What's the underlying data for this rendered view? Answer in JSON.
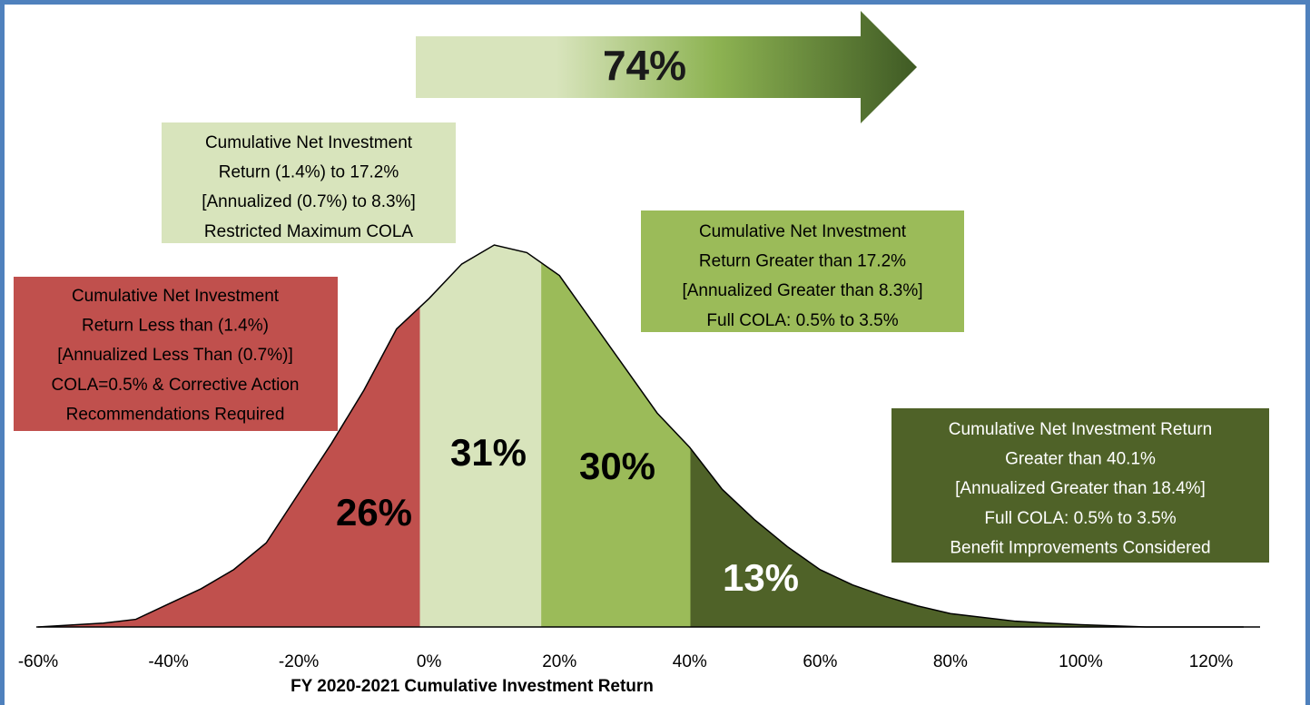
{
  "chart_data": {
    "type": "area",
    "x_label": "FY 2020-2021 Cumulative Investment Return",
    "xlim": [
      -60,
      120
    ],
    "xticks": [
      {
        "value": -60,
        "label": "-60%"
      },
      {
        "value": -40,
        "label": "-40%"
      },
      {
        "value": -20,
        "label": "-20%"
      },
      {
        "value": 0,
        "label": "0%"
      },
      {
        "value": 20,
        "label": "20%"
      },
      {
        "value": 40,
        "label": "40%"
      },
      {
        "value": 60,
        "label": "60%"
      },
      {
        "value": 80,
        "label": "80%"
      },
      {
        "value": 100,
        "label": "100%"
      },
      {
        "value": 120,
        "label": "120%"
      }
    ],
    "curve": {
      "x": [
        -60,
        -55,
        -50,
        -45,
        -40,
        -35,
        -30,
        -25,
        -20,
        -15,
        -10,
        -5,
        0,
        5,
        10,
        15,
        20,
        25,
        30,
        35,
        40,
        45,
        50,
        55,
        60,
        65,
        70,
        75,
        80,
        85,
        90,
        95,
        100,
        105,
        110,
        125
      ],
      "values": [
        0,
        0.5,
        1,
        2,
        6,
        10,
        15,
        22,
        35,
        48,
        62,
        78,
        86,
        95,
        100,
        98,
        92,
        80,
        68,
        56,
        47,
        36,
        28,
        21,
        15,
        11,
        8,
        5.5,
        3.5,
        2.5,
        1.5,
        1,
        0.6,
        0.3,
        0,
        0
      ],
      "color": "#000000"
    },
    "boundaries": [
      -1.4,
      17.2,
      40.1
    ],
    "regions": [
      {
        "value": 26,
        "value_label": "26%",
        "color": "#c0504d",
        "label_color": "#000000"
      },
      {
        "value": 31,
        "value_label": "31%",
        "color": "#d8e4bc",
        "label_color": "#000000"
      },
      {
        "value": 30,
        "value_label": "30%",
        "color": "#9bbb59",
        "label_color": "#000000"
      },
      {
        "value": 13,
        "value_label": "13%",
        "color": "#4f6228",
        "label_color": "#ffffff"
      }
    ],
    "arrow": {
      "value": 74,
      "label": "74%"
    },
    "annotations": [
      {
        "lines": [
          "Cumulative Net Investment",
          "Return (1.4%)  to 17.2%",
          "[Annualized (0.7%) to 8.3%]",
          "Restricted Maximum COLA"
        ],
        "color": "#d8e4bc",
        "text_color": "#000000"
      },
      {
        "lines": [
          "Cumulative Net Investment",
          "Return Greater than 17.2%",
          "[Annualized Greater than 8.3%]",
          "Full COLA: 0.5% to 3.5%"
        ],
        "color": "#9bbb59",
        "text_color": "#000000"
      },
      {
        "lines": [
          "Cumulative Net Investment",
          "Return Less than (1.4%)",
          "[Annualized Less Than (0.7%)]",
          "COLA=0.5% & Corrective Action",
          "Recommendations Required"
        ],
        "color": "#c0504d",
        "text_color": "#000000"
      },
      {
        "lines": [
          "Cumulative Net Investment Return",
          "Greater than 40.1%",
          "[Annualized Greater than 18.4%]",
          "Full COLA: 0.5% to 3.5%",
          "Benefit Improvements Considered"
        ],
        "color": "#4f6228",
        "text_color": "#ffffff"
      }
    ]
  }
}
